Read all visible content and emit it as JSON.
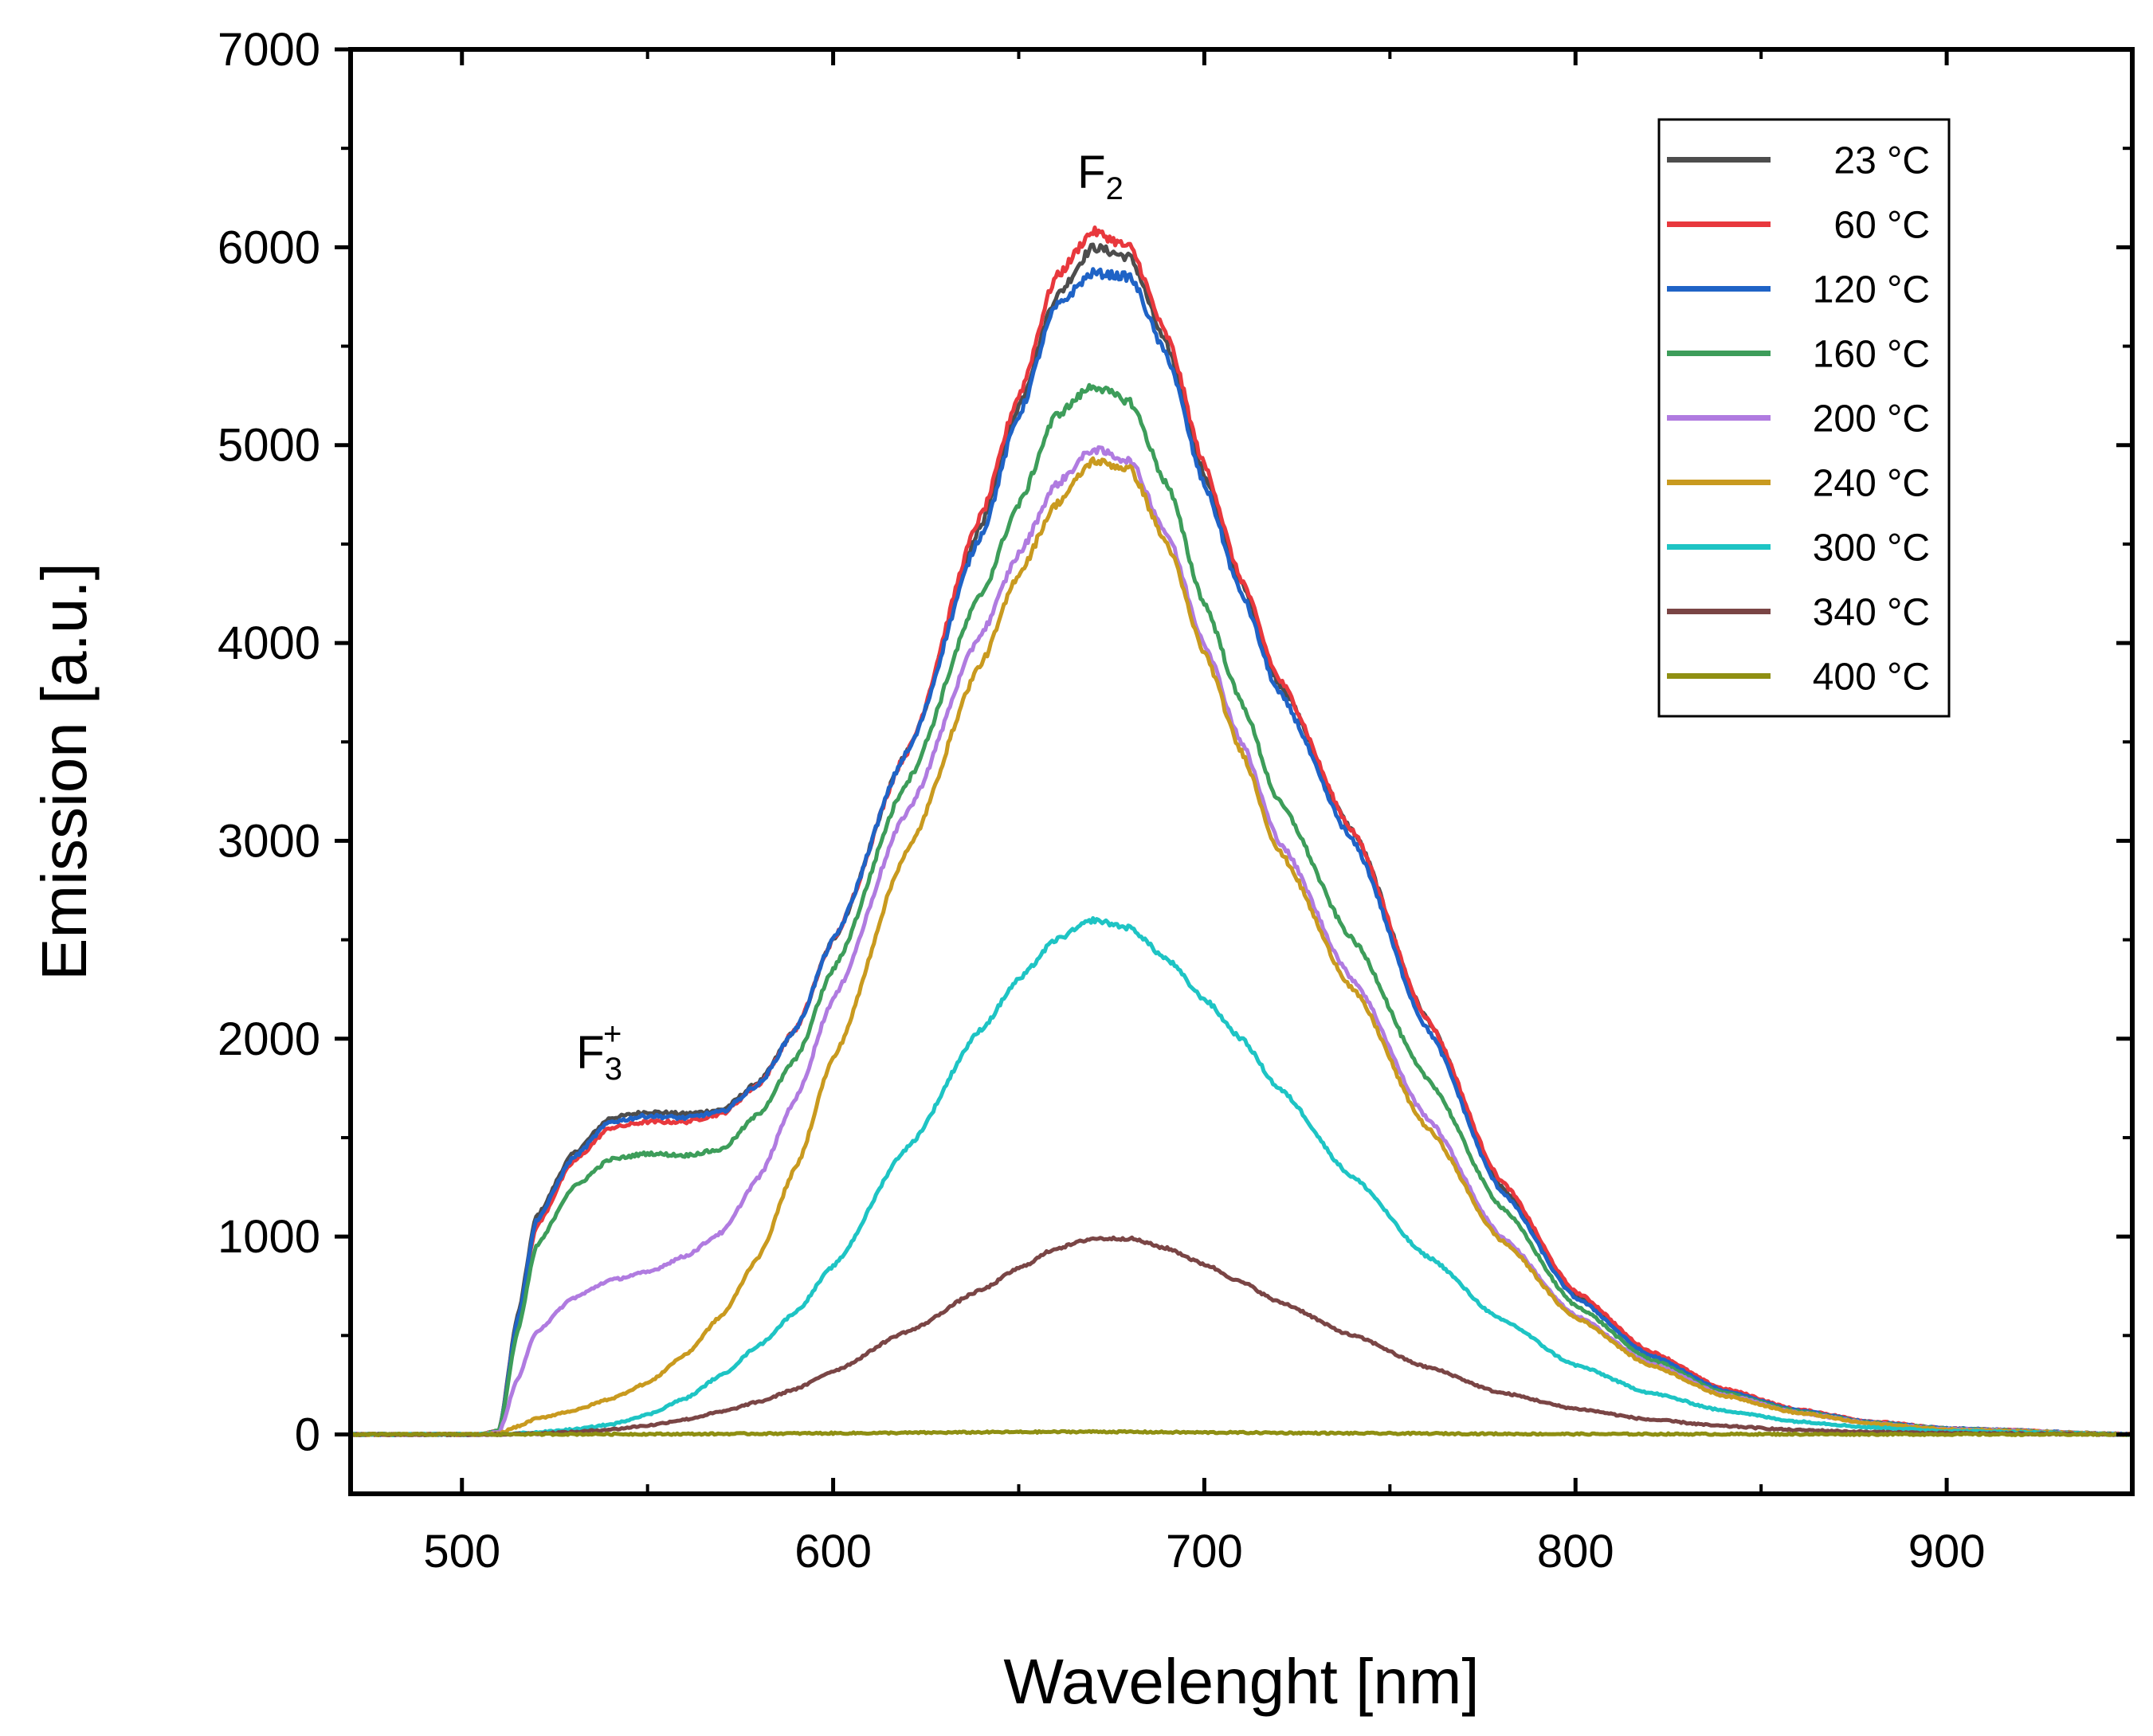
{
  "chart_data": {
    "type": "line",
    "xlabel": "Wavelenght [nm]",
    "ylabel": "Emission [a.u.]",
    "xlim": [
      470,
      950
    ],
    "ylim": [
      -300,
      7000
    ],
    "xticks": [
      500,
      600,
      700,
      800,
      900
    ],
    "yticks": [
      0,
      1000,
      2000,
      3000,
      4000,
      5000,
      6000,
      7000
    ],
    "grid": false,
    "legend_position": "top-right",
    "annotations": [
      {
        "base": "F",
        "sub": "2",
        "sup": "",
        "x": 672,
        "y": 6300
      },
      {
        "base": "F",
        "sub": "3",
        "sup": "+",
        "x": 537,
        "y": 1850
      }
    ],
    "series": [
      {
        "name": "23 °C",
        "color": "#4d4d4d",
        "points": [
          [
            470,
            0
          ],
          [
            505,
            0
          ],
          [
            510,
            20
          ],
          [
            515,
            600
          ],
          [
            520,
            1100
          ],
          [
            530,
            1420
          ],
          [
            540,
            1600
          ],
          [
            550,
            1630
          ],
          [
            560,
            1620
          ],
          [
            570,
            1640
          ],
          [
            580,
            1780
          ],
          [
            590,
            2050
          ],
          [
            600,
            2500
          ],
          [
            620,
            3450
          ],
          [
            640,
            4600
          ],
          [
            650,
            5200
          ],
          [
            660,
            5750
          ],
          [
            670,
            6000
          ],
          [
            680,
            5950
          ],
          [
            690,
            5500
          ],
          [
            700,
            4850
          ],
          [
            710,
            4300
          ],
          [
            720,
            3800
          ],
          [
            740,
            3050
          ],
          [
            760,
            2100
          ],
          [
            780,
            1250
          ],
          [
            800,
            700
          ],
          [
            820,
            400
          ],
          [
            840,
            220
          ],
          [
            860,
            120
          ],
          [
            880,
            60
          ],
          [
            900,
            30
          ],
          [
            950,
            0
          ]
        ]
      },
      {
        "name": "60 °C",
        "color": "#e8383d",
        "points": [
          [
            470,
            0
          ],
          [
            505,
            0
          ],
          [
            510,
            20
          ],
          [
            515,
            580
          ],
          [
            520,
            1050
          ],
          [
            530,
            1380
          ],
          [
            540,
            1550
          ],
          [
            550,
            1580
          ],
          [
            560,
            1580
          ],
          [
            570,
            1620
          ],
          [
            580,
            1770
          ],
          [
            590,
            2050
          ],
          [
            600,
            2500
          ],
          [
            620,
            3450
          ],
          [
            640,
            4650
          ],
          [
            650,
            5250
          ],
          [
            660,
            5850
          ],
          [
            670,
            6080
          ],
          [
            680,
            6000
          ],
          [
            690,
            5550
          ],
          [
            700,
            4900
          ],
          [
            710,
            4320
          ],
          [
            720,
            3820
          ],
          [
            740,
            3050
          ],
          [
            760,
            2100
          ],
          [
            780,
            1280
          ],
          [
            800,
            720
          ],
          [
            820,
            420
          ],
          [
            840,
            230
          ],
          [
            860,
            125
          ],
          [
            880,
            65
          ],
          [
            900,
            30
          ],
          [
            950,
            0
          ]
        ]
      },
      {
        "name": "120 °C",
        "color": "#1f63c6",
        "points": [
          [
            470,
            0
          ],
          [
            505,
            0
          ],
          [
            510,
            20
          ],
          [
            515,
            580
          ],
          [
            520,
            1080
          ],
          [
            530,
            1400
          ],
          [
            540,
            1580
          ],
          [
            550,
            1610
          ],
          [
            560,
            1600
          ],
          [
            570,
            1630
          ],
          [
            580,
            1770
          ],
          [
            590,
            2050
          ],
          [
            600,
            2500
          ],
          [
            620,
            3450
          ],
          [
            640,
            4550
          ],
          [
            650,
            5150
          ],
          [
            660,
            5700
          ],
          [
            670,
            5870
          ],
          [
            680,
            5850
          ],
          [
            690,
            5450
          ],
          [
            700,
            4800
          ],
          [
            710,
            4250
          ],
          [
            720,
            3750
          ],
          [
            740,
            3000
          ],
          [
            760,
            2050
          ],
          [
            780,
            1230
          ],
          [
            800,
            690
          ],
          [
            820,
            400
          ],
          [
            840,
            220
          ],
          [
            860,
            120
          ],
          [
            880,
            60
          ],
          [
            900,
            30
          ],
          [
            950,
            0
          ]
        ]
      },
      {
        "name": "160 °C",
        "color": "#3d9d5a",
        "points": [
          [
            470,
            0
          ],
          [
            505,
            0
          ],
          [
            510,
            20
          ],
          [
            515,
            520
          ],
          [
            520,
            950
          ],
          [
            530,
            1250
          ],
          [
            540,
            1390
          ],
          [
            550,
            1420
          ],
          [
            560,
            1410
          ],
          [
            570,
            1440
          ],
          [
            580,
            1620
          ],
          [
            590,
            1900
          ],
          [
            600,
            2350
          ],
          [
            620,
            3300
          ],
          [
            640,
            4250
          ],
          [
            650,
            4700
          ],
          [
            660,
            5150
          ],
          [
            670,
            5300
          ],
          [
            680,
            5220
          ],
          [
            690,
            4800
          ],
          [
            700,
            4200
          ],
          [
            710,
            3700
          ],
          [
            720,
            3200
          ],
          [
            740,
            2500
          ],
          [
            760,
            1800
          ],
          [
            780,
            1150
          ],
          [
            800,
            650
          ],
          [
            820,
            380
          ],
          [
            840,
            210
          ],
          [
            860,
            115
          ],
          [
            880,
            58
          ],
          [
            900,
            28
          ],
          [
            950,
            0
          ]
        ]
      },
      {
        "name": "200 °C",
        "color": "#b07be0",
        "points": [
          [
            470,
            0
          ],
          [
            505,
            0
          ],
          [
            510,
            10
          ],
          [
            515,
            280
          ],
          [
            520,
            520
          ],
          [
            530,
            690
          ],
          [
            540,
            780
          ],
          [
            550,
            820
          ],
          [
            560,
            900
          ],
          [
            570,
            1020
          ],
          [
            580,
            1300
          ],
          [
            590,
            1700
          ],
          [
            600,
            2200
          ],
          [
            620,
            3150
          ],
          [
            640,
            4050
          ],
          [
            650,
            4450
          ],
          [
            660,
            4800
          ],
          [
            670,
            4980
          ],
          [
            680,
            4920
          ],
          [
            690,
            4550
          ],
          [
            700,
            4000
          ],
          [
            710,
            3500
          ],
          [
            720,
            3000
          ],
          [
            740,
            2300
          ],
          [
            760,
            1600
          ],
          [
            780,
            1000
          ],
          [
            800,
            600
          ],
          [
            820,
            360
          ],
          [
            840,
            200
          ],
          [
            860,
            110
          ],
          [
            880,
            55
          ],
          [
            900,
            26
          ],
          [
            950,
            0
          ]
        ]
      },
      {
        "name": "240 °C",
        "color": "#c99a1f",
        "points": [
          [
            470,
            0
          ],
          [
            505,
            0
          ],
          [
            510,
            5
          ],
          [
            515,
            40
          ],
          [
            520,
            80
          ],
          [
            530,
            120
          ],
          [
            540,
            180
          ],
          [
            550,
            260
          ],
          [
            560,
            400
          ],
          [
            570,
            600
          ],
          [
            580,
            900
          ],
          [
            590,
            1350
          ],
          [
            600,
            1900
          ],
          [
            620,
            2950
          ],
          [
            640,
            3900
          ],
          [
            650,
            4350
          ],
          [
            660,
            4700
          ],
          [
            670,
            4920
          ],
          [
            680,
            4880
          ],
          [
            690,
            4500
          ],
          [
            700,
            3950
          ],
          [
            710,
            3450
          ],
          [
            720,
            2950
          ],
          [
            740,
            2250
          ],
          [
            760,
            1550
          ],
          [
            780,
            980
          ],
          [
            800,
            590
          ],
          [
            820,
            350
          ],
          [
            840,
            195
          ],
          [
            860,
            108
          ],
          [
            880,
            54
          ],
          [
            900,
            25
          ],
          [
            950,
            0
          ]
        ]
      },
      {
        "name": "300 °C",
        "color": "#1ec4c4",
        "points": [
          [
            470,
            0
          ],
          [
            510,
            0
          ],
          [
            520,
            10
          ],
          [
            530,
            25
          ],
          [
            540,
            50
          ],
          [
            550,
            100
          ],
          [
            560,
            180
          ],
          [
            570,
            300
          ],
          [
            580,
            450
          ],
          [
            590,
            620
          ],
          [
            600,
            850
          ],
          [
            620,
            1450
          ],
          [
            640,
            2050
          ],
          [
            650,
            2300
          ],
          [
            660,
            2500
          ],
          [
            670,
            2600
          ],
          [
            680,
            2560
          ],
          [
            690,
            2400
          ],
          [
            700,
            2200
          ],
          [
            710,
            2000
          ],
          [
            720,
            1750
          ],
          [
            740,
            1300
          ],
          [
            760,
            900
          ],
          [
            780,
            580
          ],
          [
            800,
            350
          ],
          [
            820,
            210
          ],
          [
            840,
            120
          ],
          [
            860,
            65
          ],
          [
            880,
            35
          ],
          [
            900,
            17
          ],
          [
            950,
            0
          ]
        ]
      },
      {
        "name": "340 °C",
        "color": "#7a4545",
        "points": [
          [
            470,
            0
          ],
          [
            510,
            0
          ],
          [
            520,
            5
          ],
          [
            530,
            12
          ],
          [
            540,
            25
          ],
          [
            550,
            45
          ],
          [
            560,
            75
          ],
          [
            570,
            115
          ],
          [
            580,
            165
          ],
          [
            590,
            230
          ],
          [
            600,
            320
          ],
          [
            620,
            520
          ],
          [
            640,
            730
          ],
          [
            650,
            840
          ],
          [
            660,
            940
          ],
          [
            670,
            990
          ],
          [
            680,
            990
          ],
          [
            690,
            940
          ],
          [
            700,
            860
          ],
          [
            710,
            770
          ],
          [
            720,
            670
          ],
          [
            740,
            500
          ],
          [
            760,
            340
          ],
          [
            780,
            210
          ],
          [
            800,
            130
          ],
          [
            820,
            75
          ],
          [
            840,
            42
          ],
          [
            860,
            22
          ],
          [
            880,
            12
          ],
          [
            900,
            6
          ],
          [
            950,
            0
          ]
        ]
      },
      {
        "name": "400 °C",
        "color": "#8f8f12",
        "points": [
          [
            470,
            0
          ],
          [
            560,
            2
          ],
          [
            600,
            6
          ],
          [
            650,
            12
          ],
          [
            670,
            14
          ],
          [
            700,
            10
          ],
          [
            750,
            5
          ],
          [
            800,
            2
          ],
          [
            950,
            0
          ]
        ]
      }
    ]
  }
}
